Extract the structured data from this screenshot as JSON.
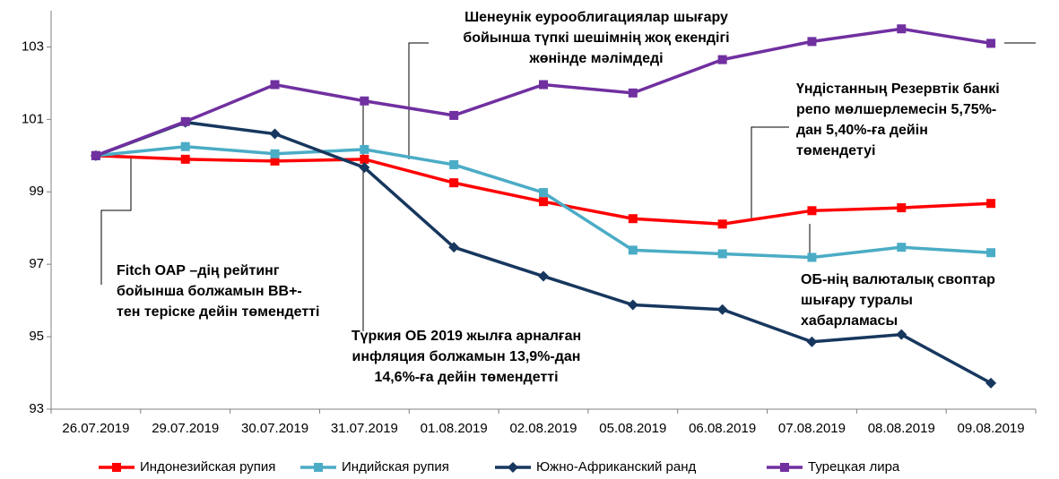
{
  "chart_data": {
    "type": "line",
    "categories": [
      "26.07.2019",
      "29.07.2019",
      "30.07.2019",
      "31.07.2019",
      "01.08.2019",
      "02.08.2019",
      "05.08.2019",
      "06.08.2019",
      "07.08.2019",
      "08.08.2019",
      "09.08.2019"
    ],
    "series": [
      {
        "name": "Индонезийская  рупия",
        "color": "#ff0000",
        "marker": "square",
        "values": [
          100,
          99.9,
          99.85,
          99.9,
          99.25,
          98.73,
          98.26,
          98.11,
          98.48,
          98.56,
          98.68
        ]
      },
      {
        "name": "Индийская  рупия",
        "color": "#4bacc6",
        "marker": "square",
        "values": [
          100,
          100.25,
          100.05,
          100.17,
          99.75,
          98.98,
          97.39,
          97.29,
          97.19,
          97.47,
          97.32
        ]
      },
      {
        "name": "Южно-Африканский  ранд",
        "color": "#17375e",
        "marker": "diamond",
        "values": [
          100,
          100.92,
          100.6,
          99.67,
          97.47,
          96.67,
          95.88,
          95.75,
          94.86,
          95.06,
          93.72
        ]
      },
      {
        "name": "Турецкая  лира",
        "color": "#7030a0",
        "marker": "square",
        "values": [
          100,
          100.94,
          101.96,
          101.51,
          101.11,
          101.96,
          101.73,
          102.65,
          103.15,
          103.5,
          103.1
        ]
      }
    ],
    "ylim": [
      93,
      104
    ],
    "yticks": [
      93,
      95,
      97,
      99,
      101,
      103
    ],
    "legend": "bottom",
    "annotations": [
      {
        "lines": [
          "Fitch  ОАР –дің рейтинг",
          "бойынша  болжамын  ВВ+-",
          "тен теріске дейін төмендетті"
        ]
      },
      {
        "lines": [
          "Түркия  ОБ  2019 жылға арналған",
          "инфляция болжамын 13,9%-дан",
          "14,6%-ға дейін төмендетті"
        ]
      },
      {
        "lines": [
          "Шенеунік еурооблигациялар шығару",
          "бойынша түпкі шешімнің жоқ екендігі",
          "жөнінде мәлімдеді"
        ]
      },
      {
        "lines": [
          "Үндістанның Резервтік банкі",
          "репо мөлшерлемесін 5,75%-",
          "дан 5,40%-ға дейін",
          "төмендетуі"
        ]
      },
      {
        "lines": [
          "ОБ-нің валюталық своптар",
          "шығару туралы",
          "хабарламасы"
        ]
      }
    ]
  }
}
